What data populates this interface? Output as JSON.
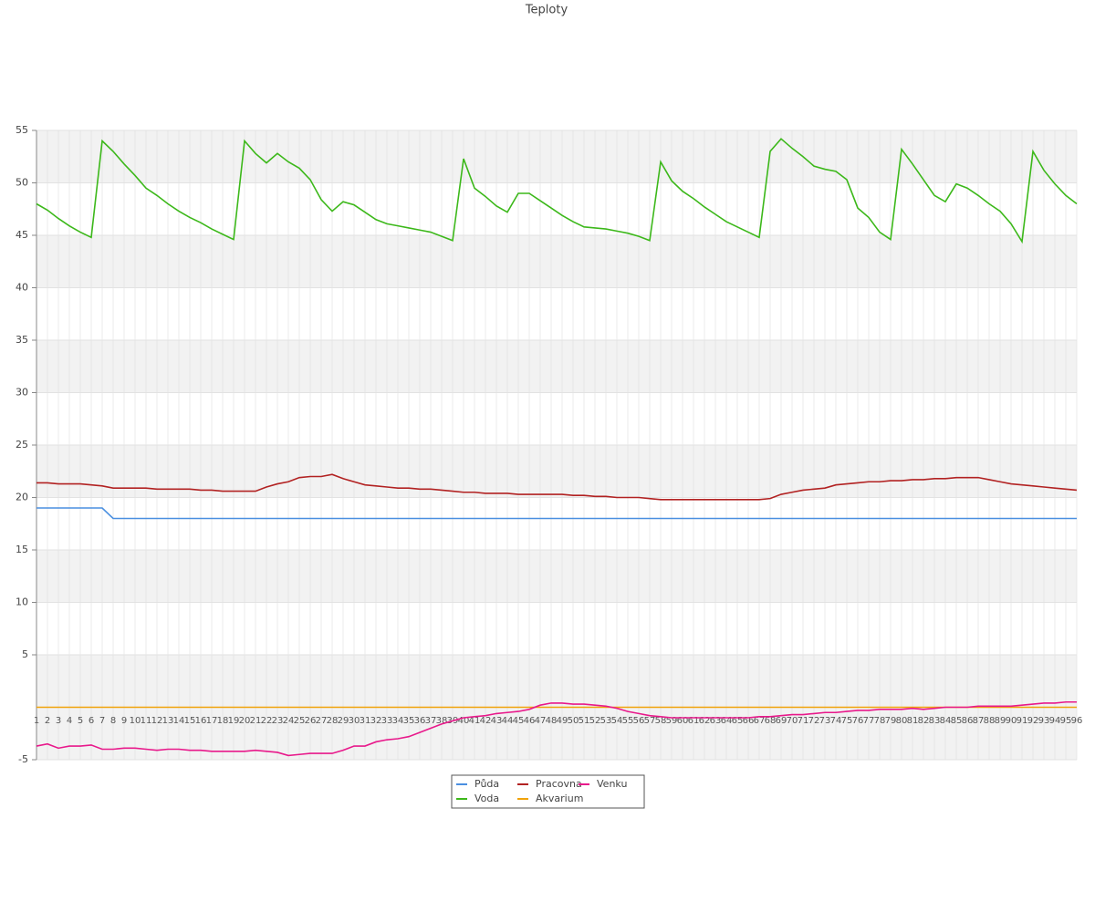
{
  "chart_data": {
    "type": "line",
    "title": "Teploty",
    "categories": [
      1,
      2,
      3,
      4,
      5,
      6,
      7,
      8,
      9,
      10,
      11,
      12,
      13,
      14,
      15,
      16,
      17,
      18,
      19,
      20,
      21,
      22,
      23,
      24,
      25,
      26,
      27,
      28,
      29,
      30,
      31,
      32,
      33,
      34,
      35,
      36,
      37,
      38,
      39,
      40,
      41,
      42,
      43,
      44,
      45,
      46,
      47,
      48,
      49,
      50,
      51,
      52,
      53,
      54,
      55,
      56,
      57,
      58,
      59,
      60,
      61,
      62,
      63,
      64,
      65,
      66,
      67,
      68,
      69,
      70,
      71,
      72,
      73,
      74,
      75,
      76,
      77,
      78,
      79,
      80,
      81,
      82,
      83,
      84,
      85,
      86,
      87,
      88,
      89,
      90,
      91,
      92,
      93,
      94,
      95,
      96
    ],
    "series": [
      {
        "name": "Půda",
        "color": "#4a8fe0",
        "values": [
          19,
          19,
          19,
          19,
          19,
          19,
          19,
          18,
          18,
          18,
          18,
          18,
          18,
          18,
          18,
          18,
          18,
          18,
          18,
          18,
          18,
          18,
          18,
          18,
          18,
          18,
          18,
          18,
          18,
          18,
          18,
          18,
          18,
          18,
          18,
          18,
          18,
          18,
          18,
          18,
          18,
          18,
          18,
          18,
          18,
          18,
          18,
          18,
          18,
          18,
          18,
          18,
          18,
          18,
          18,
          18,
          18,
          18,
          18,
          18,
          18,
          18,
          18,
          18,
          18,
          18,
          18,
          18,
          18,
          18,
          18,
          18,
          18,
          18,
          18,
          18,
          18,
          18,
          18,
          18,
          18,
          18,
          18,
          18,
          18,
          18,
          18,
          18,
          18,
          18,
          18,
          18,
          18,
          18,
          18,
          18
        ]
      },
      {
        "name": "Voda",
        "color": "#3cb81a",
        "values": [
          48.0,
          47.4,
          46.6,
          45.9,
          45.3,
          44.8,
          54.0,
          53.0,
          51.8,
          50.7,
          49.5,
          48.8,
          48.0,
          47.3,
          46.7,
          46.2,
          45.6,
          45.1,
          44.6,
          54.0,
          52.8,
          51.9,
          52.8,
          52.0,
          51.4,
          50.3,
          48.4,
          47.3,
          48.2,
          47.9,
          47.2,
          46.5,
          46.1,
          45.9,
          45.7,
          45.5,
          45.3,
          44.9,
          44.5,
          52.3,
          49.5,
          48.7,
          47.8,
          47.2,
          49.0,
          49.0,
          48.3,
          47.6,
          46.9,
          46.3,
          45.8,
          45.7,
          45.6,
          45.4,
          45.2,
          44.9,
          44.5,
          52.0,
          50.2,
          49.2,
          48.5,
          47.7,
          47.0,
          46.3,
          45.8,
          45.3,
          44.8,
          53.0,
          54.2,
          53.3,
          52.5,
          51.6,
          51.3,
          51.1,
          50.3,
          47.6,
          46.7,
          45.3,
          44.6,
          53.2,
          51.8,
          50.3,
          48.8,
          48.2,
          49.9,
          49.5,
          48.8,
          48.0,
          47.3,
          46.1,
          44.4,
          53.0,
          51.2,
          49.9,
          48.8,
          48.0
        ]
      },
      {
        "name": "Pracovna",
        "color": "#b22222",
        "values": [
          21.4,
          21.4,
          21.3,
          21.3,
          21.3,
          21.2,
          21.1,
          20.9,
          20.9,
          20.9,
          20.9,
          20.8,
          20.8,
          20.8,
          20.8,
          20.7,
          20.7,
          20.6,
          20.6,
          20.6,
          20.6,
          21.0,
          21.3,
          21.5,
          21.9,
          22.0,
          22.0,
          22.2,
          21.8,
          21.5,
          21.2,
          21.1,
          21.0,
          20.9,
          20.9,
          20.8,
          20.8,
          20.7,
          20.6,
          20.5,
          20.5,
          20.4,
          20.4,
          20.4,
          20.3,
          20.3,
          20.3,
          20.3,
          20.3,
          20.2,
          20.2,
          20.1,
          20.1,
          20.0,
          20.0,
          20.0,
          19.9,
          19.8,
          19.8,
          19.8,
          19.8,
          19.8,
          19.8,
          19.8,
          19.8,
          19.8,
          19.8,
          19.9,
          20.3,
          20.5,
          20.7,
          20.8,
          20.9,
          21.2,
          21.3,
          21.4,
          21.5,
          21.5,
          21.6,
          21.6,
          21.7,
          21.7,
          21.8,
          21.8,
          21.9,
          21.9,
          21.9,
          21.7,
          21.5,
          21.3,
          21.2,
          21.1,
          21.0,
          20.9,
          20.8,
          20.7
        ]
      },
      {
        "name": "Akvarium",
        "color": "#f0a30a",
        "values": [
          0,
          0,
          0,
          0,
          0,
          0,
          0,
          0,
          0,
          0,
          0,
          0,
          0,
          0,
          0,
          0,
          0,
          0,
          0,
          0,
          0,
          0,
          0,
          0,
          0,
          0,
          0,
          0,
          0,
          0,
          0,
          0,
          0,
          0,
          0,
          0,
          0,
          0,
          0,
          0,
          0,
          0,
          0,
          0,
          0,
          0,
          0,
          0,
          0,
          0,
          0,
          0,
          0,
          0,
          0,
          0,
          0,
          0,
          0,
          0,
          0,
          0,
          0,
          0,
          0,
          0,
          0,
          0,
          0,
          0,
          0,
          0,
          0,
          0,
          0,
          0,
          0,
          0,
          0,
          0,
          0,
          0,
          0,
          0,
          0,
          0,
          0,
          0,
          0,
          0,
          0,
          0,
          0,
          0,
          0,
          0
        ]
      },
      {
        "name": "Venku",
        "color": "#e8198b",
        "values": [
          -3.7,
          -3.5,
          -3.9,
          -3.7,
          -3.7,
          -3.6,
          -4.0,
          -4.0,
          -3.9,
          -3.9,
          -4.0,
          -4.1,
          -4.0,
          -4.0,
          -4.1,
          -4.1,
          -4.2,
          -4.2,
          -4.2,
          -4.2,
          -4.1,
          -4.2,
          -4.3,
          -4.6,
          -4.5,
          -4.4,
          -4.4,
          -4.4,
          -4.1,
          -3.7,
          -3.7,
          -3.3,
          -3.1,
          -3.0,
          -2.8,
          -2.4,
          -2.0,
          -1.6,
          -1.3,
          -1.0,
          -0.9,
          -0.8,
          -0.6,
          -0.5,
          -0.4,
          -0.2,
          0.2,
          0.4,
          0.4,
          0.3,
          0.3,
          0.2,
          0.1,
          -0.1,
          -0.4,
          -0.6,
          -0.8,
          -0.9,
          -1.0,
          -1.0,
          -1.0,
          -1.0,
          -1.0,
          -1.0,
          -1.0,
          -1.0,
          -0.9,
          -0.9,
          -0.8,
          -0.7,
          -0.7,
          -0.6,
          -0.5,
          -0.5,
          -0.4,
          -0.3,
          -0.3,
          -0.2,
          -0.2,
          -0.2,
          -0.1,
          -0.2,
          -0.1,
          0.0,
          0.0,
          0.0,
          0.1,
          0.1,
          0.1,
          0.1,
          0.2,
          0.3,
          0.4,
          0.4,
          0.5,
          0.5
        ]
      }
    ],
    "ylim": [
      -5,
      55
    ],
    "yticks": [
      55,
      50,
      45,
      40,
      35,
      30,
      25,
      20,
      15,
      10,
      5,
      -5
    ],
    "grid": true
  }
}
